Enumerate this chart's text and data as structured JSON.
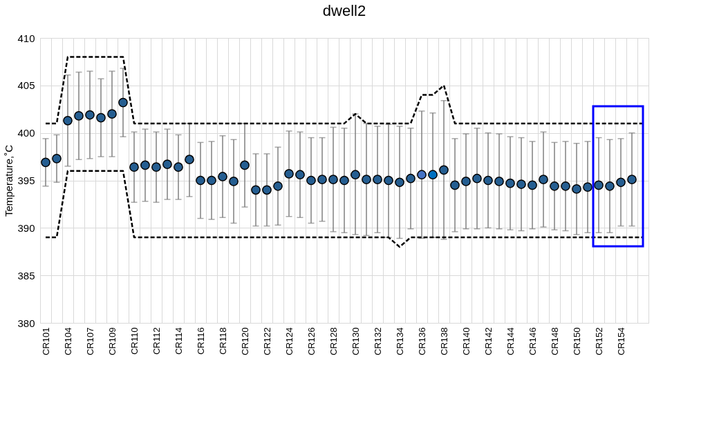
{
  "chart_data": {
    "type": "scatter",
    "title": "dwell2",
    "ylabel": "Temperature,˚C",
    "categories": [
      "CR101",
      null,
      "CR104",
      null,
      "CR107",
      null,
      "CR109",
      null,
      "CR110",
      null,
      "CR112",
      null,
      "CR114",
      null,
      "CR116",
      null,
      "CR118",
      null,
      "CR120",
      null,
      "CR122",
      null,
      "CR124",
      null,
      "CR126",
      null,
      "CR128",
      null,
      "CR130",
      null,
      "CR132",
      null,
      "CR134",
      null,
      "CR136",
      null,
      "CR138",
      null,
      "CR140",
      null,
      "CR142",
      null,
      "CR144",
      null,
      "CR146",
      null,
      "CR148",
      null,
      "CR150",
      null,
      "CR152",
      null,
      "CR154",
      null,
      null
    ],
    "ylim": [
      380,
      410
    ],
    "yticks": [
      380,
      385,
      390,
      395,
      400,
      405,
      410
    ],
    "grid": true,
    "series": [
      {
        "marker": "circle",
        "colors": [
          "#255e91",
          "#255e91",
          "#255e91",
          "#255e91",
          "#255e91",
          "#255e91",
          "#255e91",
          "#255e91",
          "#255e91",
          "#255e91",
          "#255e91",
          "#255e91",
          "#255e91",
          "#255e91",
          "#255e91",
          "#255e91",
          "#255e91",
          "#255e91",
          "#255e91",
          "#255e91",
          "#255e91",
          "#255e91",
          "#255e91",
          "#255e91",
          "#255e91",
          "#255e91",
          "#255e91",
          "#255e91",
          "#255e91",
          "#255e91",
          "#255e91",
          "#255e91",
          "#255e91",
          "#255e91",
          "#4472c4",
          "#0070c0",
          "#255e91",
          "#255e91",
          "#255e91",
          "#255e91",
          "#255e91",
          "#255e91",
          "#255e91",
          "#255e91",
          "#255e91",
          "#255e91",
          "#255e91",
          "#255e91",
          "#255e91",
          "#255e91",
          "#255e91",
          "#255e91",
          "#255e91",
          "#255e91",
          null
        ],
        "values": [
          396.9,
          397.3,
          401.3,
          401.8,
          401.9,
          401.6,
          402.0,
          403.2,
          396.4,
          396.6,
          396.4,
          396.7,
          396.4,
          397.2,
          395.0,
          395.0,
          395.4,
          394.9,
          396.6,
          394.0,
          394.0,
          394.4,
          395.7,
          395.6,
          395.0,
          395.1,
          395.1,
          395.0,
          395.6,
          395.1,
          395.1,
          395.0,
          394.8,
          395.2,
          395.6,
          395.6,
          396.1,
          394.5,
          394.9,
          395.2,
          395.0,
          394.9,
          394.7,
          394.6,
          394.5,
          395.1,
          394.4,
          394.4,
          394.1,
          394.3,
          394.5,
          394.4,
          394.8,
          395.1,
          null
        ],
        "errors": [
          [
            394.4,
            399.4
          ],
          [
            394.8,
            399.8
          ],
          [
            396.5,
            406.1
          ],
          [
            397.2,
            406.4
          ],
          [
            397.3,
            406.5
          ],
          [
            397.5,
            405.7
          ],
          [
            397.5,
            406.5
          ],
          [
            399.6,
            406.8
          ],
          [
            392.7,
            400.1
          ],
          [
            392.8,
            400.4
          ],
          [
            392.7,
            400.1
          ],
          [
            393.0,
            400.4
          ],
          [
            393.0,
            399.8
          ],
          [
            393.3,
            401.0
          ],
          [
            391.0,
            399.0
          ],
          [
            390.9,
            399.1
          ],
          [
            391.1,
            399.7
          ],
          [
            390.5,
            399.3
          ],
          [
            392.2,
            401.0
          ],
          [
            390.2,
            397.8
          ],
          [
            390.2,
            397.8
          ],
          [
            390.3,
            398.5
          ],
          [
            391.2,
            400.2
          ],
          [
            391.1,
            400.1
          ],
          [
            390.5,
            399.5
          ],
          [
            390.7,
            399.5
          ],
          [
            389.6,
            400.6
          ],
          [
            389.5,
            400.5
          ],
          [
            389.3,
            402.0
          ],
          [
            389.2,
            401.0
          ],
          [
            389.5,
            400.7
          ],
          [
            389.0,
            400.9
          ],
          [
            388.9,
            400.7
          ],
          [
            389.9,
            400.5
          ],
          [
            388.9,
            402.3
          ],
          [
            389.0,
            402.1
          ],
          [
            388.8,
            403.4
          ],
          [
            389.6,
            399.4
          ],
          [
            389.9,
            399.9
          ],
          [
            389.9,
            400.5
          ],
          [
            390.0,
            400.0
          ],
          [
            389.9,
            399.9
          ],
          [
            389.8,
            399.6
          ],
          [
            389.7,
            399.5
          ],
          [
            389.9,
            399.1
          ],
          [
            390.1,
            400.1
          ],
          [
            389.8,
            399.0
          ],
          [
            389.7,
            399.1
          ],
          [
            389.3,
            398.9
          ],
          [
            389.5,
            399.1
          ],
          [
            389.5,
            399.5
          ],
          [
            389.5,
            399.3
          ],
          [
            390.2,
            399.4
          ],
          [
            390.2,
            400.0
          ],
          null
        ]
      },
      {
        "type": "line",
        "color": "#000000",
        "line_style": "dashed",
        "marker": "none",
        "values": [
          401,
          401,
          408,
          408,
          408,
          408,
          408,
          408,
          401,
          401,
          401,
          401,
          401,
          401,
          401,
          401,
          401,
          401,
          401,
          401,
          401,
          401,
          401,
          401,
          401,
          401,
          401,
          401,
          402,
          401,
          401,
          401,
          401,
          401,
          404,
          404,
          405,
          401,
          401,
          401,
          401,
          401,
          401,
          401,
          401,
          401,
          401,
          401,
          401,
          401,
          401,
          401,
          401,
          401,
          401
        ]
      },
      {
        "type": "line",
        "color": "#000000",
        "line_style": "dashed",
        "marker": "none",
        "values": [
          389,
          389,
          396,
          396,
          396,
          396,
          396,
          396,
          389,
          389,
          389,
          389,
          389,
          389,
          389,
          389,
          389,
          389,
          389,
          389,
          389,
          389,
          389,
          389,
          389,
          389,
          389,
          389,
          389,
          389,
          389,
          389,
          388,
          389,
          389,
          389,
          389,
          389,
          389,
          389,
          389,
          389,
          389,
          389,
          389,
          389,
          389,
          389,
          389,
          389,
          389,
          389,
          389,
          389,
          389
        ]
      }
    ]
  }
}
